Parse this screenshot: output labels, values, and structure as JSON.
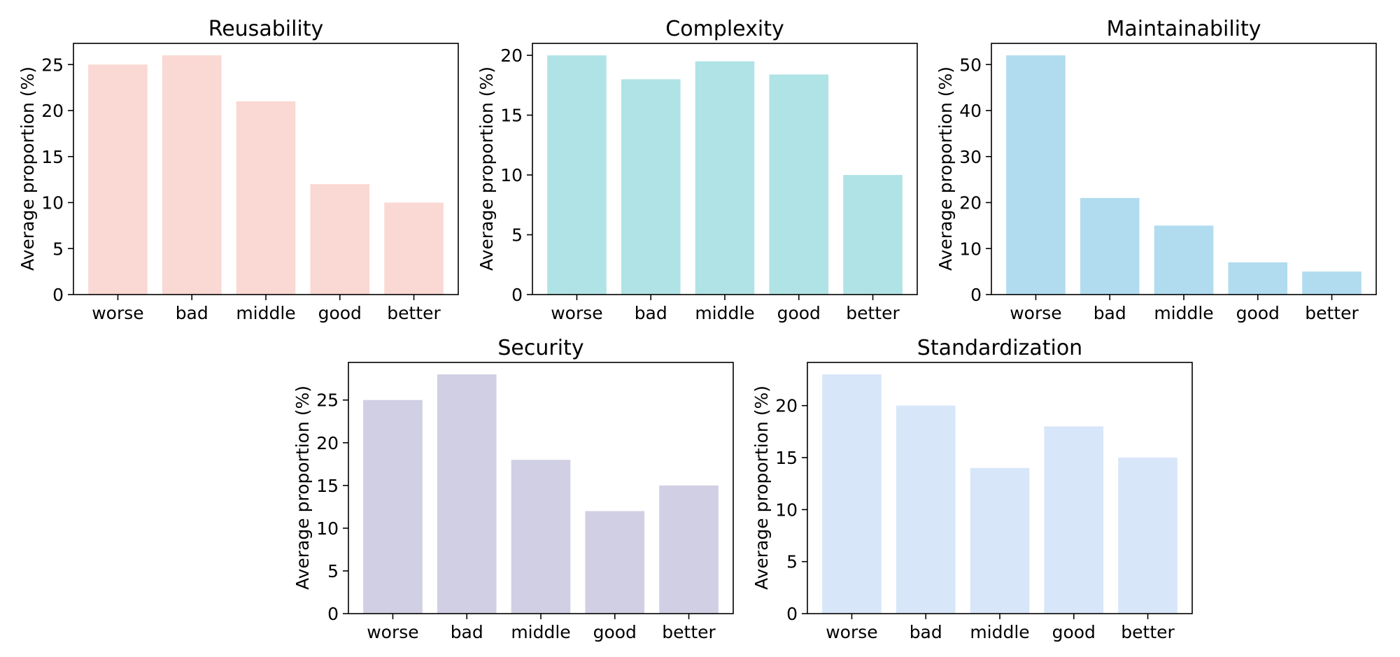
{
  "chart_data": [
    {
      "type": "bar",
      "title": "Reusability",
      "xlabel": "",
      "ylabel": "Average proportion (%)",
      "categories": [
        "worse",
        "bad",
        "middle",
        "good",
        "better"
      ],
      "values": [
        25,
        26,
        21,
        12,
        10
      ],
      "ylim": [
        0,
        27.3
      ],
      "yticks": [
        0,
        5,
        10,
        15,
        20,
        25
      ],
      "color": "#fad8d3",
      "grid": false
    },
    {
      "type": "bar",
      "title": "Complexity",
      "xlabel": "",
      "ylabel": "Average proportion (%)",
      "categories": [
        "worse",
        "bad",
        "middle",
        "good",
        "better"
      ],
      "values": [
        20,
        18,
        19.5,
        18.4,
        10
      ],
      "ylim": [
        0,
        21
      ],
      "yticks": [
        0,
        5,
        10,
        15,
        20
      ],
      "color": "#b0e3e5",
      "grid": false
    },
    {
      "type": "bar",
      "title": "Maintainability",
      "xlabel": "",
      "ylabel": "Average proportion (%)",
      "categories": [
        "worse",
        "bad",
        "middle",
        "good",
        "better"
      ],
      "values": [
        52,
        21,
        15,
        7,
        5
      ],
      "ylim": [
        0,
        54.6
      ],
      "yticks": [
        0,
        10,
        20,
        30,
        40,
        50
      ],
      "color": "#b1dcef",
      "grid": false
    },
    {
      "type": "bar",
      "title": "Security",
      "xlabel": "",
      "ylabel": "Average proportion (%)",
      "categories": [
        "worse",
        "bad",
        "middle",
        "good",
        "better"
      ],
      "values": [
        25,
        28,
        18,
        12,
        15
      ],
      "ylim": [
        0,
        29.4
      ],
      "yticks": [
        0,
        5,
        10,
        15,
        20,
        25
      ],
      "color": "#d0cfe4",
      "grid": false
    },
    {
      "type": "bar",
      "title": "Standardization",
      "xlabel": "",
      "ylabel": "Average proportion (%)",
      "categories": [
        "worse",
        "bad",
        "middle",
        "good",
        "better"
      ],
      "values": [
        23,
        20,
        14,
        18,
        15
      ],
      "ylim": [
        0,
        24.15
      ],
      "yticks": [
        0,
        5,
        10,
        15,
        20
      ],
      "color": "#d8e6f9",
      "grid": false
    }
  ]
}
